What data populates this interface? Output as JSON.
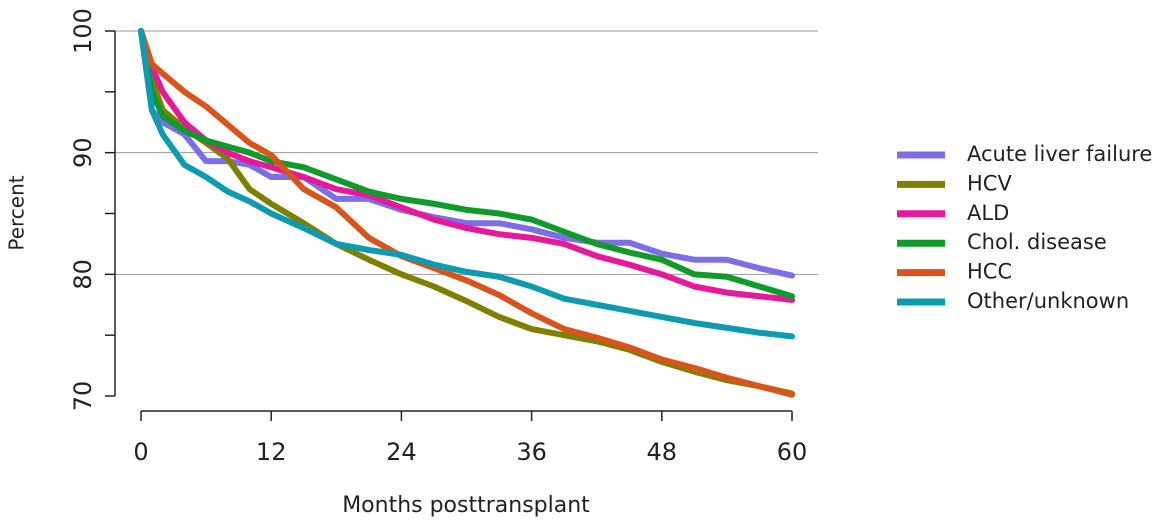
{
  "chart_data": {
    "type": "line",
    "xlabel": "Months posttransplant",
    "ylabel": "Percent",
    "x": [
      0,
      1,
      2,
      4,
      6,
      8,
      10,
      12,
      15,
      18,
      21,
      24,
      27,
      30,
      33,
      36,
      39,
      42,
      45,
      48,
      51,
      54,
      57,
      60
    ],
    "xlim": [
      0,
      60
    ],
    "xticks": [
      0,
      12,
      24,
      36,
      48,
      60
    ],
    "ylim": [
      70,
      100
    ],
    "yticks": [
      70,
      80,
      90,
      100
    ],
    "yminorticks": [
      75,
      85,
      95
    ],
    "grid_lines": [
      80,
      90,
      100
    ],
    "legend": "right",
    "series": [
      {
        "name": "Acute liver failure",
        "color": "#7b6ee6",
        "values": [
          100,
          93.5,
          92.5,
          91.5,
          89.3,
          89.3,
          89,
          88,
          88,
          86.2,
          86.2,
          85.3,
          84.7,
          84.2,
          84.2,
          83.7,
          83,
          82.6,
          82.6,
          81.7,
          81.2,
          81.2,
          80.5,
          79.9
        ]
      },
      {
        "name": "HCV",
        "color": "#808000",
        "values": [
          100,
          96,
          93.5,
          92,
          90.8,
          89.5,
          87,
          85.8,
          84.2,
          82.5,
          81.2,
          80,
          79,
          77.8,
          76.5,
          75.5,
          75,
          74.5,
          73.8,
          72.8,
          72,
          71.3,
          70.8,
          70.2
        ]
      },
      {
        "name": "ALD",
        "color": "#e6199a",
        "values": [
          100,
          97,
          95,
          92.5,
          91,
          90,
          89.3,
          88.8,
          88,
          87,
          86.5,
          85.5,
          84.5,
          83.8,
          83.3,
          83,
          82.5,
          81.5,
          80.8,
          80,
          79,
          78.5,
          78.2,
          77.9
        ]
      },
      {
        "name": "Chol. disease",
        "color": "#109a2a",
        "values": [
          100,
          95,
          93,
          91.8,
          91,
          90.5,
          90,
          89.3,
          88.8,
          87.8,
          86.8,
          86.2,
          85.8,
          85.3,
          85,
          84.5,
          83.5,
          82.5,
          81.8,
          81.2,
          80,
          79.8,
          79,
          78.2
        ]
      },
      {
        "name": "HCC",
        "color": "#d9541a",
        "values": [
          100,
          97.3,
          96.5,
          95,
          93.8,
          92.3,
          90.8,
          89.8,
          87,
          85.5,
          83,
          81.5,
          80.5,
          79.5,
          78.3,
          76.8,
          75.5,
          74.8,
          74,
          73,
          72.3,
          71.5,
          70.8,
          70.1
        ]
      },
      {
        "name": "Other/unknown",
        "color": "#0e9bb0",
        "values": [
          100,
          93.5,
          91.5,
          89,
          88,
          86.8,
          86,
          85,
          83.8,
          82.5,
          82,
          81.6,
          80.8,
          80.2,
          79.8,
          79,
          78,
          77.5,
          77,
          76.5,
          76,
          75.6,
          75.2,
          74.9
        ]
      }
    ]
  }
}
